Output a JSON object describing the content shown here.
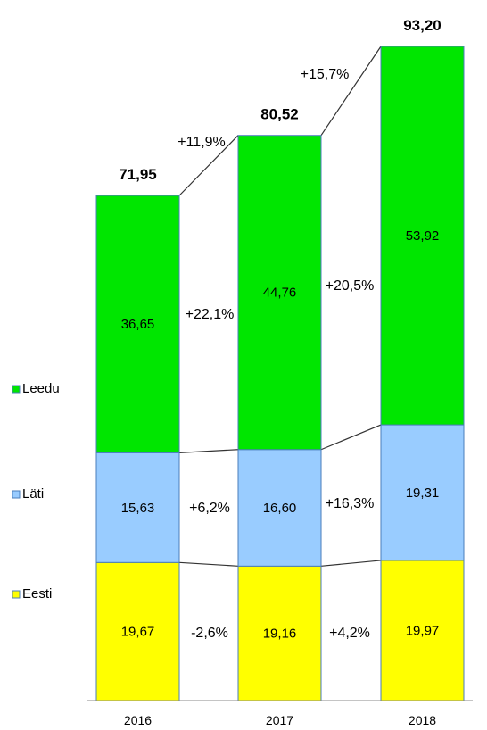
{
  "chart_data": {
    "type": "bar",
    "stacked": true,
    "categories": [
      "2016",
      "2017",
      "2018"
    ],
    "series": [
      {
        "name": "Eesti",
        "color": "#ffff00",
        "values": [
          19.67,
          19.16,
          19.97
        ],
        "labels": [
          "19,67",
          "19,16",
          "19,97"
        ]
      },
      {
        "name": "Läti",
        "color": "#99ccff",
        "values": [
          15.63,
          16.6,
          19.31
        ],
        "labels": [
          "15,63",
          "16,60",
          "19,31"
        ]
      },
      {
        "name": "Leedu",
        "color": "#00e600",
        "values": [
          36.65,
          44.76,
          53.92
        ],
        "labels": [
          "36,65",
          "44,76",
          "53,92"
        ]
      }
    ],
    "totals": {
      "values": [
        71.95,
        80.52,
        93.2
      ],
      "labels": [
        "71,95",
        "80,52",
        "93,20"
      ]
    },
    "changes": {
      "total": [
        "+11,9%",
        "+15,7%"
      ],
      "Leedu": [
        "+22,1%",
        "+20,5%"
      ],
      "Läti": [
        "+6,2%",
        "+16,3%"
      ],
      "Eesti": [
        "-2,6%",
        "+4,2%"
      ]
    },
    "ylim": [
      0,
      100
    ],
    "grid": false,
    "legend": "left",
    "connector_color": "#333333",
    "bar_border_color": "#4a7ebb"
  }
}
